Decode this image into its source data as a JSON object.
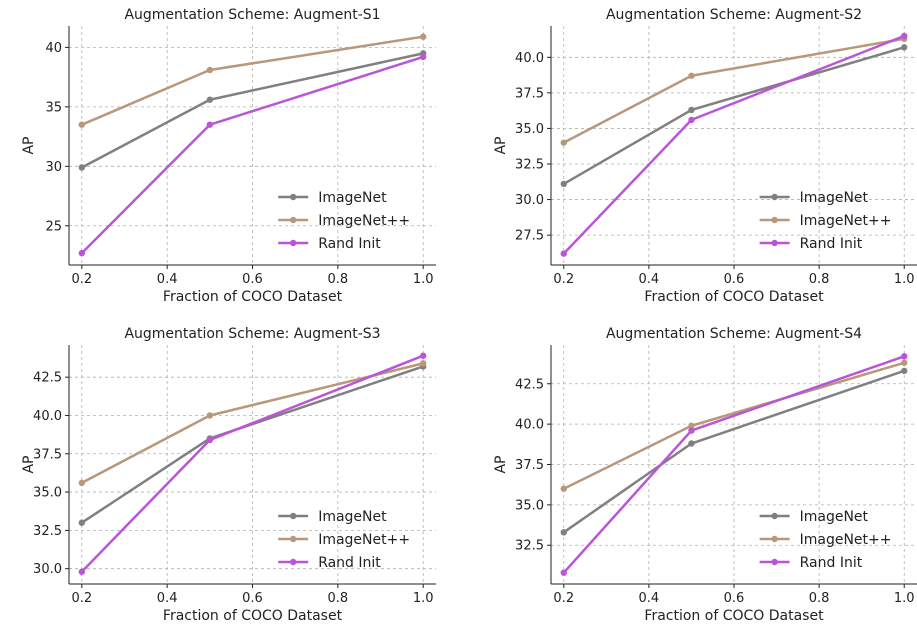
{
  "chart_data": [
    {
      "type": "line",
      "title": "Augmentation Scheme: Augment-S1",
      "xlabel": "Fraction of COCO Dataset",
      "ylabel": "AP",
      "x": [
        0.2,
        0.5,
        1.0
      ],
      "xticks": [
        "0.2",
        "0.4",
        "0.6",
        "0.8",
        "1.0"
      ],
      "xtick_values": [
        0.2,
        0.4,
        0.6,
        0.8,
        1.0
      ],
      "yticks": [
        "25",
        "30",
        "35",
        "40"
      ],
      "ytick_values": [
        25,
        30,
        35,
        40
      ],
      "xlim": [
        0.17,
        1.03
      ],
      "ylim": [
        21.7,
        41.8
      ],
      "grid": true,
      "legend_position": "lower-right",
      "series": [
        {
          "name": "ImageNet",
          "color": "#808080",
          "values": [
            29.9,
            35.6,
            39.5
          ]
        },
        {
          "name": "ImageNet++",
          "color": "#b8977a",
          "values": [
            33.5,
            38.1,
            40.9
          ]
        },
        {
          "name": "Rand Init",
          "color": "#bb55d8",
          "values": [
            22.7,
            33.5,
            39.2
          ]
        }
      ]
    },
    {
      "type": "line",
      "title": "Augmentation Scheme: Augment-S2",
      "xlabel": "Fraction of COCO Dataset",
      "ylabel": "AP",
      "x": [
        0.2,
        0.5,
        1.0
      ],
      "xticks": [
        "0.2",
        "0.4",
        "0.6",
        "0.8",
        "1.0"
      ],
      "xtick_values": [
        0.2,
        0.4,
        0.6,
        0.8,
        1.0
      ],
      "yticks": [
        "27.5",
        "30.0",
        "32.5",
        "35.0",
        "37.5",
        "40.0"
      ],
      "ytick_values": [
        27.5,
        30.0,
        32.5,
        35.0,
        37.5,
        40.0
      ],
      "xlim": [
        0.17,
        1.03
      ],
      "ylim": [
        25.4,
        42.2
      ],
      "grid": true,
      "legend_position": "lower-right",
      "series": [
        {
          "name": "ImageNet",
          "color": "#808080",
          "values": [
            31.1,
            36.3,
            40.7
          ]
        },
        {
          "name": "ImageNet++",
          "color": "#b8977a",
          "values": [
            34.0,
            38.7,
            41.3
          ]
        },
        {
          "name": "Rand Init",
          "color": "#bb55d8",
          "values": [
            26.2,
            35.6,
            41.5
          ]
        }
      ]
    },
    {
      "type": "line",
      "title": "Augmentation Scheme: Augment-S3",
      "xlabel": "Fraction of COCO Dataset",
      "ylabel": "AP",
      "x": [
        0.2,
        0.5,
        1.0
      ],
      "xticks": [
        "0.2",
        "0.4",
        "0.6",
        "0.8",
        "1.0"
      ],
      "xtick_values": [
        0.2,
        0.4,
        0.6,
        0.8,
        1.0
      ],
      "yticks": [
        "30.0",
        "32.5",
        "35.0",
        "37.5",
        "40.0",
        "42.5"
      ],
      "ytick_values": [
        30.0,
        32.5,
        35.0,
        37.5,
        40.0,
        42.5
      ],
      "xlim": [
        0.17,
        1.03
      ],
      "ylim": [
        29.0,
        44.6
      ],
      "grid": true,
      "legend_position": "lower-right",
      "series": [
        {
          "name": "ImageNet",
          "color": "#808080",
          "values": [
            33.0,
            38.5,
            43.2
          ]
        },
        {
          "name": "ImageNet++",
          "color": "#b8977a",
          "values": [
            35.6,
            40.0,
            43.4
          ]
        },
        {
          "name": "Rand Init",
          "color": "#bb55d8",
          "values": [
            29.8,
            38.4,
            43.9
          ]
        }
      ]
    },
    {
      "type": "line",
      "title": "Augmentation Scheme: Augment-S4",
      "xlabel": "Fraction of COCO Dataset",
      "ylabel": "AP",
      "x": [
        0.2,
        0.5,
        1.0
      ],
      "xticks": [
        "0.2",
        "0.4",
        "0.6",
        "0.8",
        "1.0"
      ],
      "xtick_values": [
        0.2,
        0.4,
        0.6,
        0.8,
        1.0
      ],
      "yticks": [
        "32.5",
        "35.0",
        "37.5",
        "40.0",
        "42.5"
      ],
      "ytick_values": [
        32.5,
        35.0,
        37.5,
        40.0,
        42.5
      ],
      "xlim": [
        0.17,
        1.03
      ],
      "ylim": [
        30.1,
        44.9
      ],
      "grid": true,
      "legend_position": "lower-right",
      "series": [
        {
          "name": "ImageNet",
          "color": "#808080",
          "values": [
            33.3,
            38.8,
            43.3
          ]
        },
        {
          "name": "ImageNet++",
          "color": "#b8977a",
          "values": [
            36.0,
            39.9,
            43.8
          ]
        },
        {
          "name": "Rand Init",
          "color": "#bb55d8",
          "values": [
            30.8,
            39.6,
            44.2
          ]
        }
      ]
    }
  ]
}
